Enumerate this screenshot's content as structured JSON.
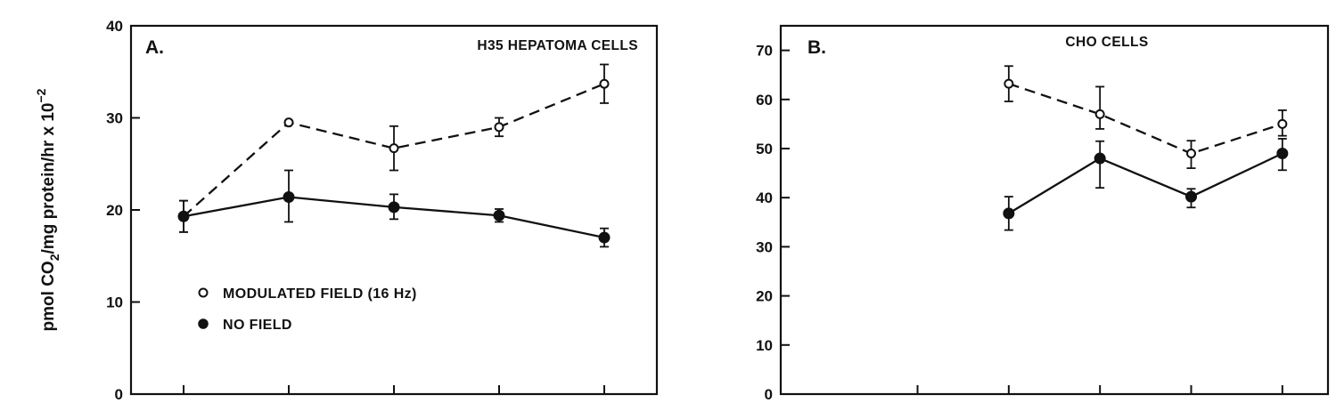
{
  "figure": {
    "ylabel": {
      "part1": "pmol CO",
      "sub": "2",
      "part2": "/mg protein/hr x 10",
      "sup": "−2"
    },
    "legend": {
      "items": [
        {
          "marker": "open-circle",
          "label": "MODULATED FIELD (16 Hz)"
        },
        {
          "marker": "filled-circle",
          "label": "NO FIELD"
        }
      ]
    }
  },
  "chart_data": [
    {
      "type": "line",
      "panel_label": "A.",
      "title": "H35 HEPATOMA CELLS",
      "ylim": [
        0,
        40
      ],
      "yticks": [
        0,
        10,
        20,
        30,
        40
      ],
      "x": [
        1,
        2,
        3,
        4,
        5
      ],
      "xlim": [
        0.5,
        5.5
      ],
      "xtick_positions": [
        1,
        2,
        3,
        4,
        5
      ],
      "series": [
        {
          "name": "MODULATED FIELD (16 Hz)",
          "marker": "open-circle",
          "linestyle": "dashed",
          "values": [
            19.3,
            29.5,
            26.7,
            29.0,
            33.7
          ],
          "error_upper": [
            21.0,
            29.5,
            29.1,
            30.0,
            35.8
          ],
          "error_lower": [
            17.6,
            29.5,
            24.3,
            28.0,
            31.6
          ]
        },
        {
          "name": "NO FIELD",
          "marker": "filled-circle",
          "linestyle": "solid",
          "values": [
            19.3,
            21.4,
            20.3,
            19.4,
            17.0
          ],
          "error_upper": [
            21.0,
            24.3,
            21.7,
            20.1,
            18.0
          ],
          "error_lower": [
            17.6,
            18.7,
            19.0,
            18.7,
            16.0
          ]
        }
      ]
    },
    {
      "type": "line",
      "panel_label": "B.",
      "title": "CHO CELLS",
      "ylim": [
        0,
        75
      ],
      "yticks": [
        0,
        10,
        20,
        30,
        40,
        50,
        60,
        70
      ],
      "x": [
        3,
        4,
        5,
        6
      ],
      "xlim": [
        0.5,
        6.5
      ],
      "xtick_positions": [
        2,
        3,
        4,
        5,
        6
      ],
      "series": [
        {
          "name": "MODULATED FIELD (16 Hz)",
          "marker": "open-circle",
          "linestyle": "dashed",
          "values": [
            63.2,
            57.0,
            49.0,
            55.0
          ],
          "error_upper": [
            66.8,
            62.6,
            51.6,
            57.8
          ],
          "error_lower": [
            59.6,
            54.0,
            46.0,
            52.6
          ]
        },
        {
          "name": "NO FIELD",
          "marker": "filled-circle",
          "linestyle": "solid",
          "values": [
            36.8,
            48.0,
            40.2,
            49.0
          ],
          "error_upper": [
            40.2,
            51.5,
            41.8,
            52.0
          ],
          "error_lower": [
            33.4,
            42.0,
            38.0,
            45.6
          ]
        }
      ]
    }
  ]
}
